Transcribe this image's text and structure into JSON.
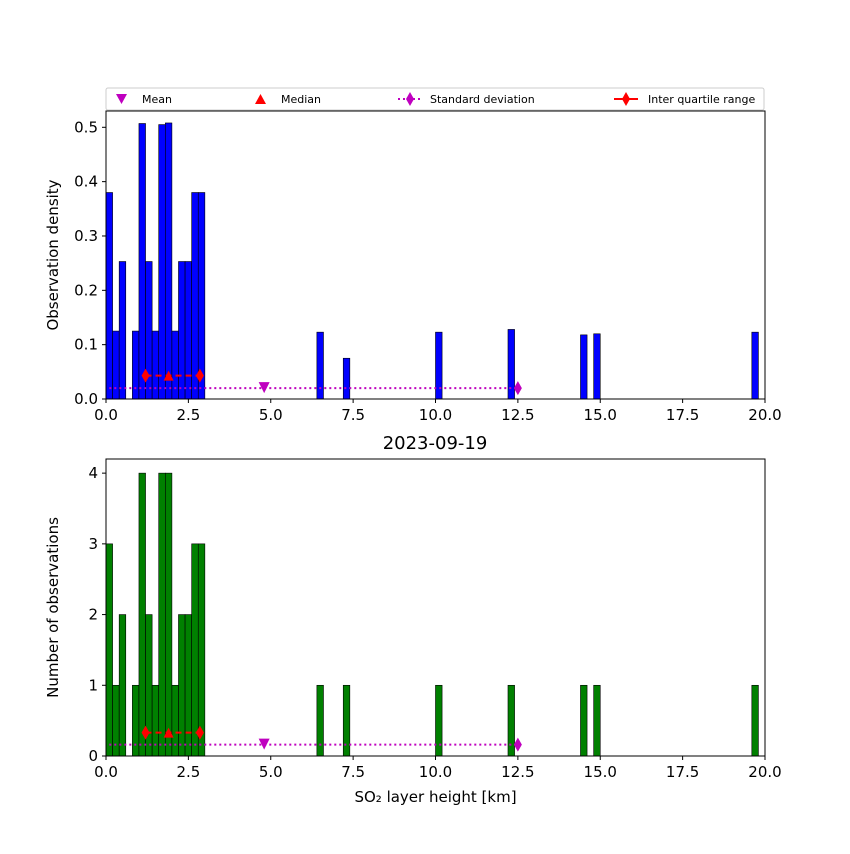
{
  "legend": {
    "mean": "Mean",
    "median": "Median",
    "std": "Standard deviation",
    "iqr": "Inter quartile range"
  },
  "colors": {
    "density_bars": "#0000ff",
    "count_bars": "#008000",
    "mean": "#bf00bf",
    "median": "#ff0000",
    "std": "#bf00bf",
    "iqr": "#ff0000"
  },
  "chart_data": [
    {
      "type": "bar",
      "ylabel": "Observation density",
      "xlim": [
        0,
        20
      ],
      "ylim": [
        0,
        0.53
      ],
      "xticks": [
        "0.0",
        "2.5",
        "5.0",
        "7.5",
        "10.0",
        "12.5",
        "15.0",
        "17.5",
        "20.0"
      ],
      "yticks": [
        "0.0",
        "0.1",
        "0.2",
        "0.3",
        "0.4",
        "0.5"
      ],
      "bin_width": 0.2,
      "bin_lefts": [
        0.0,
        0.2,
        0.4,
        0.8,
        1.0,
        1.2,
        1.4,
        1.6,
        1.8,
        2.0,
        2.2,
        2.4,
        2.6,
        2.8,
        6.4,
        7.2,
        10.0,
        12.2,
        14.4,
        14.8,
        19.6
      ],
      "values": [
        0.38,
        0.125,
        0.253,
        0.125,
        0.507,
        0.253,
        0.125,
        0.505,
        0.508,
        0.125,
        0.253,
        0.253,
        0.38,
        0.38,
        0.123,
        0.075,
        0.123,
        0.128,
        0.118,
        0.12,
        0.123
      ],
      "stats": {
        "mean": 4.8,
        "median": 1.9,
        "iqr": [
          1.2,
          2.85
        ],
        "std_range": [
          0.1,
          12.5
        ],
        "stat_line_y": 0.02,
        "iqr_line_y": 0.043
      }
    },
    {
      "type": "bar",
      "title": "2023-09-19",
      "xlabel": "SO₂ layer height [km]",
      "ylabel": "Number of observations",
      "xlim": [
        0,
        20
      ],
      "ylim": [
        0,
        4.2
      ],
      "xticks": [
        "0.0",
        "2.5",
        "5.0",
        "7.5",
        "10.0",
        "12.5",
        "15.0",
        "17.5",
        "20.0"
      ],
      "yticks": [
        "0",
        "1",
        "2",
        "3",
        "4"
      ],
      "bin_width": 0.2,
      "bin_lefts": [
        0.0,
        0.2,
        0.4,
        0.8,
        1.0,
        1.2,
        1.4,
        1.6,
        1.8,
        2.0,
        2.2,
        2.4,
        2.6,
        2.8,
        6.4,
        7.2,
        10.0,
        12.2,
        14.4,
        14.8,
        19.6
      ],
      "values": [
        3,
        1,
        2,
        1,
        4,
        2,
        1,
        4,
        4,
        1,
        2,
        2,
        3,
        3,
        1,
        1,
        1,
        1,
        1,
        1,
        1
      ],
      "stats": {
        "mean": 4.8,
        "median": 1.9,
        "iqr": [
          1.2,
          2.85
        ],
        "std_range": [
          0.1,
          12.5
        ],
        "stat_line_y": 0.16,
        "iqr_line_y": 0.33
      }
    }
  ]
}
